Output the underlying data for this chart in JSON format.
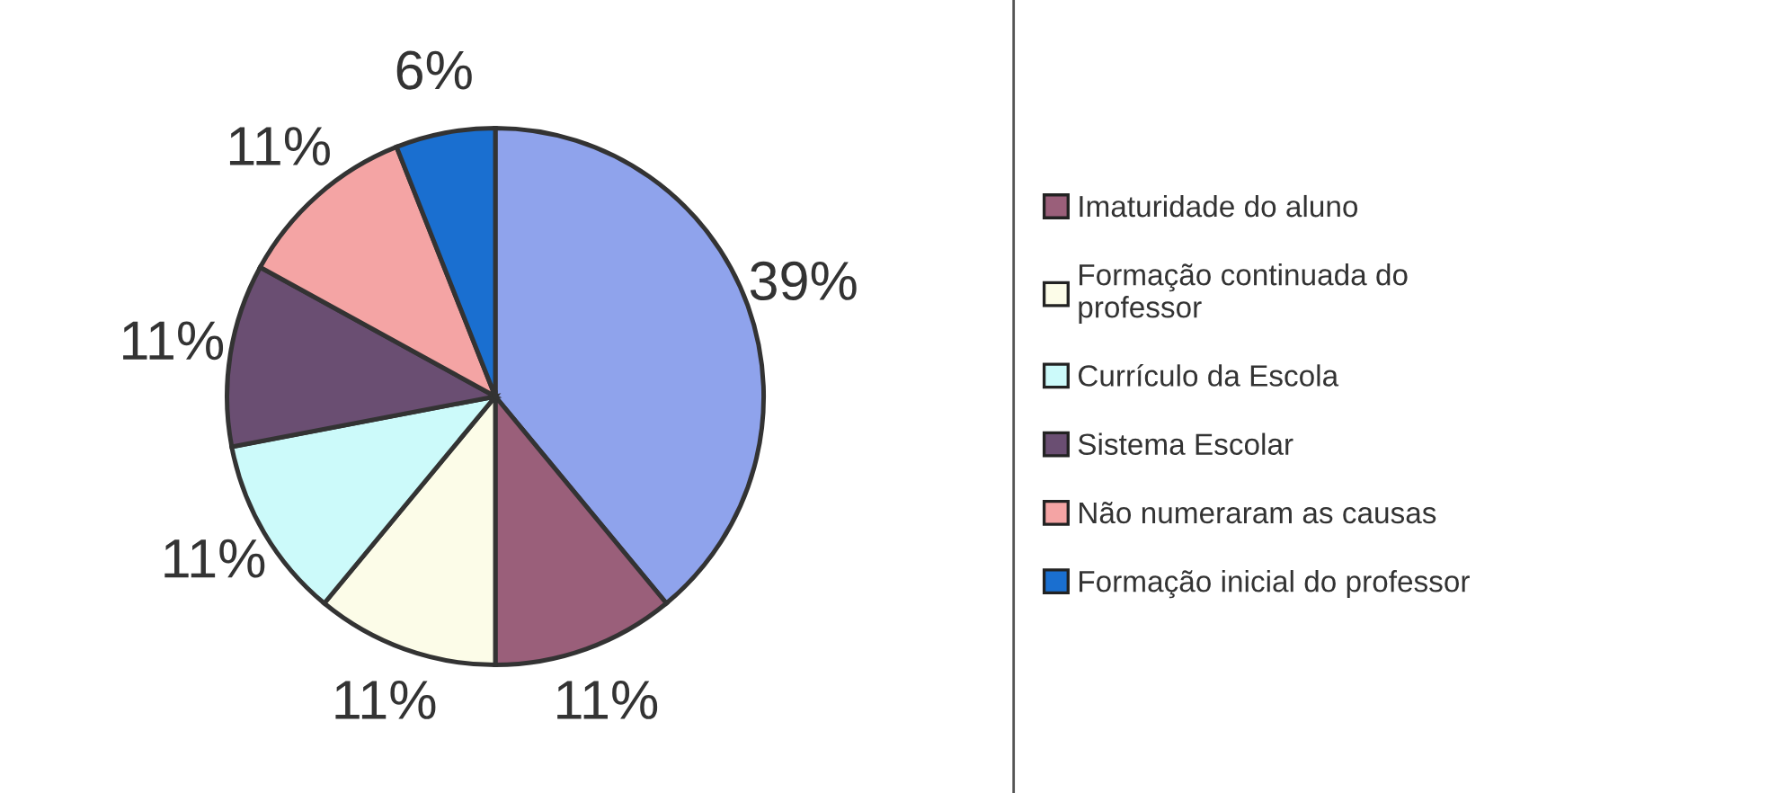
{
  "chart_data": {
    "type": "pie",
    "categories": [
      null,
      "Imaturidade do aluno",
      "Formação continuada do\nprofessor",
      "Currículo da Escola",
      "Sistema Escolar",
      "Não numeraram as causas",
      "Formação inicial do professor"
    ],
    "values": [
      39,
      11,
      11,
      11,
      11,
      11,
      6
    ],
    "colors": [
      "#8fa3ec",
      "#9a5f7a",
      "#fcfce8",
      "#ccfafa",
      "#6a4e72",
      "#f4a4a4",
      "#1a6fd0"
    ],
    "value_labels": [
      "39%",
      "11%",
      "11%",
      "11%",
      "11%",
      "11%",
      "6%"
    ],
    "legend": "right"
  }
}
